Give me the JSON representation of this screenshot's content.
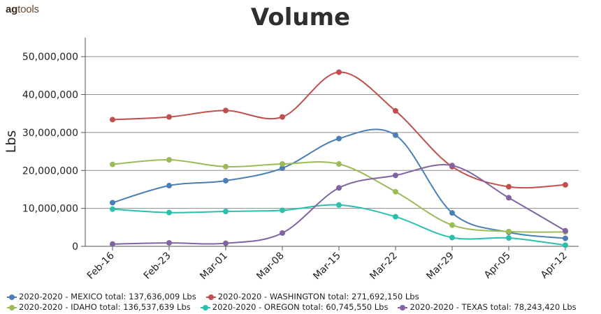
{
  "logo": {
    "part1": "ag",
    "part2": "tools"
  },
  "chart_data": {
    "type": "line",
    "title": "Volume",
    "ylabel": "Lbs",
    "xlabel": "",
    "categories": [
      "Feb-16",
      "Feb-23",
      "Mar-01",
      "Mar-08",
      "Mar-15",
      "Mar-22",
      "Mar-29",
      "Apr-05",
      "Apr-12"
    ],
    "ylim": [
      0,
      55000000
    ],
    "yticks": [
      0,
      10000000,
      20000000,
      30000000,
      40000000,
      50000000
    ],
    "ytick_labels": [
      "0",
      "10,000,000",
      "20,000,000",
      "30,000,000",
      "40,000,000",
      "50,000,000"
    ],
    "grid": "horizontal",
    "legend_position": "bottom",
    "series": [
      {
        "name": "2020-2020 - MEXICO",
        "legend": "2020-2020 - MEXICO total: 137,636,009 Lbs",
        "color": "#4a7fb5",
        "values": [
          11500000,
          16000000,
          17300000,
          20600000,
          28400000,
          29300000,
          8800000,
          3700000,
          2100000
        ]
      },
      {
        "name": "2020-2020 - WASHINGTON",
        "legend": "2020-2020 - WASHINGTON total: 271,692,150 Lbs",
        "color": "#c0504d",
        "values": [
          33400000,
          34100000,
          35800000,
          34100000,
          45900000,
          35700000,
          21000000,
          15700000,
          16200000
        ]
      },
      {
        "name": "2020-2020 - IDAHO",
        "legend": "2020-2020 - IDAHO total: 136,537,639 Lbs",
        "color": "#9bbb59",
        "values": [
          21600000,
          22800000,
          21000000,
          21700000,
          21700000,
          14400000,
          5600000,
          3900000,
          3800000
        ]
      },
      {
        "name": "2020-2020 - OREGON",
        "legend": "2020-2020 - OREGON total: 60,745,550 Lbs",
        "color": "#2bbfae",
        "values": [
          9800000,
          8900000,
          9200000,
          9500000,
          10900000,
          7800000,
          2300000,
          2200000,
          300000
        ]
      },
      {
        "name": "2020-2020 - TEXAS",
        "legend": "2020-2020 - TEXAS total: 78,243,420 Lbs",
        "color": "#8064a2",
        "values": [
          600000,
          900000,
          800000,
          3500000,
          15400000,
          18700000,
          21300000,
          12800000,
          4100000
        ]
      }
    ]
  }
}
